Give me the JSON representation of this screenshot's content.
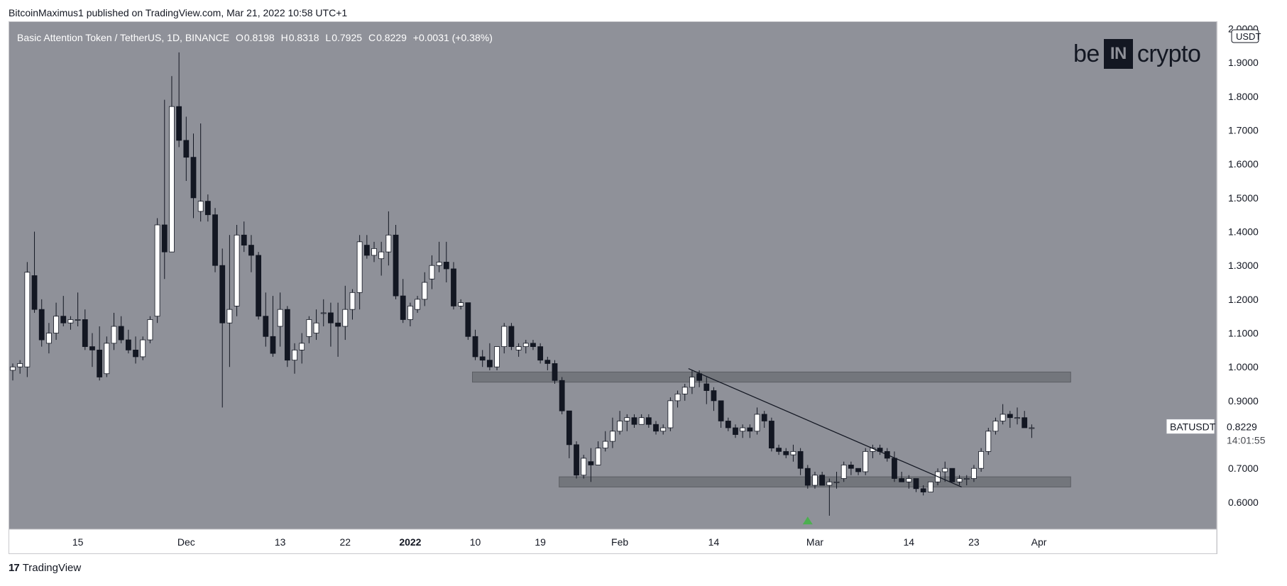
{
  "header": {
    "publisher": "BitcoinMaximus1 published on TradingView.com, Mar 21, 2022 10:58 UTC+1"
  },
  "ohlc": {
    "symbol": "Basic Attention Token / TetherUS, 1D, BINANCE",
    "o_label": "O",
    "o": "0.8198",
    "h_label": "H",
    "h": "0.8318",
    "l_label": "L",
    "l": "0.7925",
    "c_label": "C",
    "c": "0.8229",
    "change": "+0.0031 (+0.38%)"
  },
  "logo": {
    "left": "be",
    "box": "IN",
    "right": "crypto"
  },
  "footer": {
    "brand": "TradingView",
    "brand_icon": "tradingview-logo-icon"
  },
  "colors": {
    "plot_bg": "#8f9199",
    "bull": "#ffffff",
    "bear": "#131722",
    "wick": "#131722",
    "zone": "#6f7177",
    "arrow": "#4caf50",
    "axis_bg": "#ffffff",
    "text": "#131722"
  },
  "chart_data": {
    "type": "candlestick",
    "title": "Basic Attention Token / TetherUS, 1D, BINANCE",
    "ylabel": "USDT",
    "ylim": [
      0.52,
      2.02
    ],
    "y_ticks": [
      "0.6000",
      "0.7000",
      "0.8000",
      "0.9000",
      "1.0000",
      "1.1000",
      "1.2000",
      "1.3000",
      "1.4000",
      "1.5000",
      "1.6000",
      "1.7000",
      "1.8000",
      "1.9000",
      "2.0000"
    ],
    "x_ticks": [
      "15",
      "Dec",
      "13",
      "22",
      "2022",
      "10",
      "19",
      "Feb",
      "14",
      "Mar",
      "14",
      "23",
      "Apr"
    ],
    "x_tick_bars": [
      9,
      24,
      37,
      46,
      55,
      64,
      73,
      84,
      97,
      111,
      124,
      133,
      142
    ],
    "candles": [
      [
        0.99,
        1.01,
        0.96,
        1.0
      ],
      [
        1.0,
        1.02,
        0.98,
        1.01
      ],
      [
        1.0,
        1.31,
        0.97,
        1.28
      ],
      [
        1.27,
        1.4,
        1.16,
        1.17
      ],
      [
        1.17,
        1.2,
        1.06,
        1.08
      ],
      [
        1.07,
        1.13,
        1.04,
        1.1
      ],
      [
        1.1,
        1.19,
        1.08,
        1.15
      ],
      [
        1.15,
        1.21,
        1.12,
        1.13
      ],
      [
        1.13,
        1.15,
        1.11,
        1.14
      ],
      [
        1.14,
        1.22,
        1.12,
        1.14
      ],
      [
        1.14,
        1.17,
        1.05,
        1.06
      ],
      [
        1.06,
        1.1,
        1.0,
        1.05
      ],
      [
        1.05,
        1.12,
        0.96,
        0.97
      ],
      [
        0.98,
        1.09,
        0.97,
        1.07
      ],
      [
        1.07,
        1.16,
        1.05,
        1.12
      ],
      [
        1.12,
        1.15,
        1.07,
        1.08
      ],
      [
        1.08,
        1.11,
        1.04,
        1.05
      ],
      [
        1.05,
        1.09,
        1.01,
        1.03
      ],
      [
        1.03,
        1.09,
        1.02,
        1.08
      ],
      [
        1.08,
        1.15,
        1.07,
        1.14
      ],
      [
        1.15,
        1.44,
        1.13,
        1.42
      ],
      [
        1.42,
        1.79,
        1.26,
        1.34
      ],
      [
        1.34,
        1.86,
        1.34,
        1.77
      ],
      [
        1.77,
        1.93,
        1.65,
        1.67
      ],
      [
        1.67,
        1.74,
        1.55,
        1.62
      ],
      [
        1.62,
        1.69,
        1.44,
        1.5
      ],
      [
        1.46,
        1.72,
        1.43,
        1.49
      ],
      [
        1.49,
        1.51,
        1.43,
        1.45
      ],
      [
        1.45,
        1.47,
        1.28,
        1.3
      ],
      [
        1.3,
        1.35,
        0.88,
        1.13
      ],
      [
        1.13,
        1.39,
        1.0,
        1.17
      ],
      [
        1.18,
        1.42,
        1.15,
        1.39
      ],
      [
        1.39,
        1.43,
        1.34,
        1.36
      ],
      [
        1.36,
        1.39,
        1.28,
        1.33
      ],
      [
        1.33,
        1.34,
        1.14,
        1.15
      ],
      [
        1.15,
        1.22,
        1.06,
        1.09
      ],
      [
        1.09,
        1.21,
        1.03,
        1.04
      ],
      [
        1.12,
        1.22,
        1.06,
        1.17
      ],
      [
        1.17,
        1.18,
        1.0,
        1.02
      ],
      [
        1.02,
        1.07,
        0.98,
        1.05
      ],
      [
        1.05,
        1.1,
        1.01,
        1.07
      ],
      [
        1.09,
        1.15,
        1.07,
        1.14
      ],
      [
        1.1,
        1.17,
        1.08,
        1.13
      ],
      [
        1.16,
        1.2,
        1.12,
        1.16
      ],
      [
        1.16,
        1.19,
        1.06,
        1.13
      ],
      [
        1.13,
        1.19,
        1.03,
        1.12
      ],
      [
        1.12,
        1.24,
        1.08,
        1.17
      ],
      [
        1.17,
        1.23,
        1.14,
        1.22
      ],
      [
        1.22,
        1.39,
        1.17,
        1.37
      ],
      [
        1.36,
        1.39,
        1.32,
        1.33
      ],
      [
        1.33,
        1.37,
        1.31,
        1.35
      ],
      [
        1.32,
        1.37,
        1.27,
        1.34
      ],
      [
        1.34,
        1.46,
        1.3,
        1.39
      ],
      [
        1.39,
        1.42,
        1.2,
        1.21
      ],
      [
        1.21,
        1.26,
        1.13,
        1.14
      ],
      [
        1.14,
        1.19,
        1.12,
        1.18
      ],
      [
        1.17,
        1.21,
        1.16,
        1.2
      ],
      [
        1.2,
        1.28,
        1.18,
        1.25
      ],
      [
        1.26,
        1.33,
        1.23,
        1.3
      ],
      [
        1.3,
        1.37,
        1.28,
        1.31
      ],
      [
        1.31,
        1.37,
        1.25,
        1.29
      ],
      [
        1.29,
        1.31,
        1.17,
        1.18
      ],
      [
        1.18,
        1.2,
        1.17,
        1.19
      ],
      [
        1.19,
        1.19,
        1.08,
        1.09
      ],
      [
        1.09,
        1.11,
        1.02,
        1.03
      ],
      [
        1.03,
        1.05,
        1.0,
        1.02
      ],
      [
        1.02,
        1.07,
        0.99,
        1.0
      ],
      [
        1.0,
        1.06,
        0.99,
        1.06
      ],
      [
        1.06,
        1.13,
        1.04,
        1.12
      ],
      [
        1.12,
        1.13,
        1.05,
        1.06
      ],
      [
        1.05,
        1.07,
        1.03,
        1.06
      ],
      [
        1.06,
        1.08,
        1.04,
        1.07
      ],
      [
        1.07,
        1.08,
        1.05,
        1.06
      ],
      [
        1.06,
        1.07,
        1.01,
        1.02
      ],
      [
        1.02,
        1.03,
        0.99,
        1.01
      ],
      [
        1.01,
        1.02,
        0.95,
        0.96
      ],
      [
        0.96,
        0.97,
        0.86,
        0.87
      ],
      [
        0.87,
        0.87,
        0.73,
        0.77
      ],
      [
        0.77,
        0.78,
        0.67,
        0.68
      ],
      [
        0.68,
        0.74,
        0.67,
        0.73
      ],
      [
        0.72,
        0.76,
        0.66,
        0.71
      ],
      [
        0.71,
        0.78,
        0.71,
        0.76
      ],
      [
        0.76,
        0.81,
        0.75,
        0.78
      ],
      [
        0.78,
        0.85,
        0.76,
        0.81
      ],
      [
        0.81,
        0.87,
        0.8,
        0.84
      ],
      [
        0.84,
        0.86,
        0.81,
        0.85
      ],
      [
        0.85,
        0.86,
        0.82,
        0.83
      ],
      [
        0.83,
        0.86,
        0.83,
        0.85
      ],
      [
        0.85,
        0.86,
        0.82,
        0.83
      ],
      [
        0.83,
        0.84,
        0.8,
        0.81
      ],
      [
        0.81,
        0.83,
        0.8,
        0.82
      ],
      [
        0.82,
        0.91,
        0.81,
        0.9
      ],
      [
        0.9,
        0.93,
        0.88,
        0.92
      ],
      [
        0.92,
        0.95,
        0.9,
        0.94
      ],
      [
        0.94,
        0.99,
        0.92,
        0.97
      ],
      [
        0.98,
        0.99,
        0.94,
        0.96
      ],
      [
        0.95,
        0.97,
        0.89,
        0.93
      ],
      [
        0.93,
        0.94,
        0.87,
        0.9
      ],
      [
        0.9,
        0.9,
        0.82,
        0.84
      ],
      [
        0.84,
        0.85,
        0.81,
        0.82
      ],
      [
        0.82,
        0.83,
        0.79,
        0.8
      ],
      [
        0.81,
        0.83,
        0.79,
        0.82
      ],
      [
        0.82,
        0.83,
        0.79,
        0.81
      ],
      [
        0.81,
        0.88,
        0.8,
        0.86
      ],
      [
        0.86,
        0.87,
        0.82,
        0.84
      ],
      [
        0.84,
        0.85,
        0.75,
        0.76
      ],
      [
        0.76,
        0.77,
        0.74,
        0.75
      ],
      [
        0.75,
        0.76,
        0.73,
        0.74
      ],
      [
        0.74,
        0.77,
        0.72,
        0.75
      ],
      [
        0.75,
        0.76,
        0.68,
        0.7
      ],
      [
        0.7,
        0.71,
        0.64,
        0.65
      ],
      [
        0.65,
        0.69,
        0.64,
        0.68
      ],
      [
        0.68,
        0.69,
        0.65,
        0.65
      ],
      [
        0.65,
        0.67,
        0.56,
        0.66
      ],
      [
        0.66,
        0.69,
        0.64,
        0.66
      ],
      [
        0.67,
        0.72,
        0.66,
        0.71
      ],
      [
        0.71,
        0.72,
        0.68,
        0.7
      ],
      [
        0.7,
        0.7,
        0.68,
        0.69
      ],
      [
        0.69,
        0.76,
        0.68,
        0.75
      ],
      [
        0.75,
        0.77,
        0.73,
        0.76
      ],
      [
        0.76,
        0.77,
        0.74,
        0.75
      ],
      [
        0.75,
        0.76,
        0.72,
        0.73
      ],
      [
        0.73,
        0.75,
        0.66,
        0.67
      ],
      [
        0.67,
        0.69,
        0.66,
        0.66
      ],
      [
        0.66,
        0.68,
        0.64,
        0.67
      ],
      [
        0.67,
        0.67,
        0.63,
        0.64
      ],
      [
        0.64,
        0.65,
        0.62,
        0.63
      ],
      [
        0.63,
        0.66,
        0.63,
        0.66
      ],
      [
        0.66,
        0.7,
        0.65,
        0.69
      ],
      [
        0.69,
        0.72,
        0.66,
        0.7
      ],
      [
        0.7,
        0.7,
        0.66,
        0.66
      ],
      [
        0.66,
        0.68,
        0.65,
        0.67
      ],
      [
        0.67,
        0.68,
        0.65,
        0.67
      ],
      [
        0.67,
        0.71,
        0.66,
        0.7
      ],
      [
        0.7,
        0.76,
        0.69,
        0.75
      ],
      [
        0.75,
        0.82,
        0.74,
        0.81
      ],
      [
        0.81,
        0.85,
        0.8,
        0.84
      ],
      [
        0.84,
        0.89,
        0.83,
        0.86
      ],
      [
        0.86,
        0.87,
        0.82,
        0.85
      ],
      [
        0.85,
        0.88,
        0.83,
        0.85
      ],
      [
        0.85,
        0.87,
        0.82,
        0.82
      ],
      [
        0.82,
        0.83,
        0.79,
        0.82
      ]
    ],
    "zones": [
      {
        "from_bar": 64,
        "to_bar": 146,
        "low": 0.955,
        "high": 0.985
      },
      {
        "from_bar": 76,
        "to_bar": 146,
        "low": 0.645,
        "high": 0.675
      }
    ],
    "trendline": {
      "from_bar": 93.5,
      "from_price": 0.995,
      "to_bar": 131.3,
      "to_price": 0.645
    },
    "marker": {
      "bar": 110,
      "price": 0.545,
      "shape": "up-triangle"
    },
    "price_label": {
      "symbol": "BATUSDT",
      "value": "0.8229",
      "countdown": "14:01:55"
    }
  }
}
